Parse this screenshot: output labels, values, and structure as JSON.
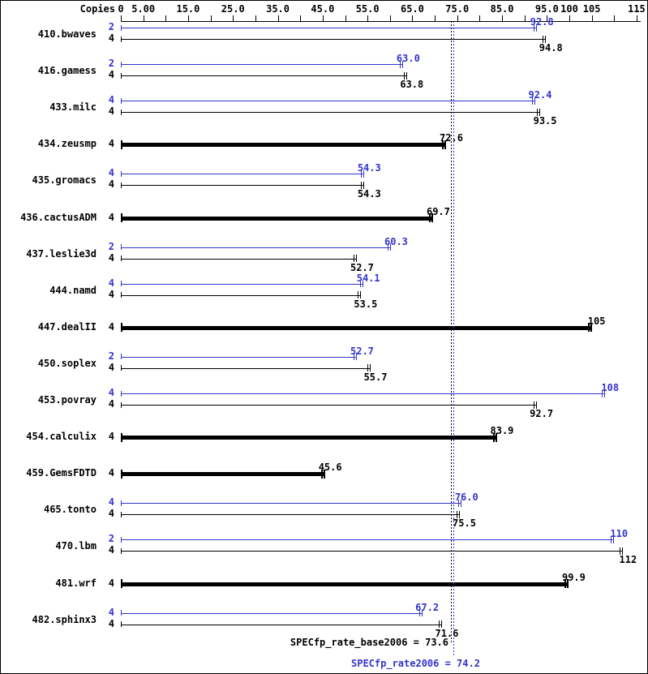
{
  "chart_data": {
    "type": "bar",
    "orientation": "horizontal",
    "copies_header": "Copies",
    "xlabel": "",
    "ylabel": "",
    "xlim": [
      0,
      116
    ],
    "tick_interval": 5,
    "grid": false,
    "axis_labels": [
      {
        "v": 0,
        "t": "0"
      },
      {
        "v": 5,
        "t": "5.00"
      },
      {
        "v": 15,
        "t": "15.0"
      },
      {
        "v": 25,
        "t": "25.0"
      },
      {
        "v": 35,
        "t": "35.0"
      },
      {
        "v": 45,
        "t": "45.0"
      },
      {
        "v": 55,
        "t": "55.0"
      },
      {
        "v": 65,
        "t": "65.0"
      },
      {
        "v": 75,
        "t": "75.0"
      },
      {
        "v": 85,
        "t": "85.0"
      },
      {
        "v": 95,
        "t": "95.0"
      },
      {
        "v": 100,
        "t": "100"
      },
      {
        "v": 105,
        "t": "105"
      },
      {
        "v": 115,
        "t": "115"
      }
    ],
    "benchmarks": [
      {
        "name": "410.bwaves",
        "bars": [
          {
            "series": "peak",
            "copies": "2",
            "value": 92.8,
            "label": "92.8"
          },
          {
            "series": "base",
            "copies": "4",
            "value": 94.8,
            "label": "94.8"
          }
        ]
      },
      {
        "name": "416.gamess",
        "bars": [
          {
            "series": "peak",
            "copies": "2",
            "value": 63.0,
            "label": "63.0"
          },
          {
            "series": "base",
            "copies": "4",
            "value": 63.8,
            "label": "63.8"
          }
        ]
      },
      {
        "name": "433.milc",
        "bars": [
          {
            "series": "peak",
            "copies": "4",
            "value": 92.4,
            "label": "92.4"
          },
          {
            "series": "base",
            "copies": "4",
            "value": 93.5,
            "label": "93.5"
          }
        ]
      },
      {
        "name": "434.zeusmp",
        "bars": [
          {
            "series": "base",
            "copies": "4",
            "value": 72.6,
            "label": "72.6"
          }
        ]
      },
      {
        "name": "435.gromacs",
        "bars": [
          {
            "series": "peak",
            "copies": "4",
            "value": 54.3,
            "label": "54.3"
          },
          {
            "series": "base",
            "copies": "4",
            "value": 54.3,
            "label": "54.3"
          }
        ]
      },
      {
        "name": "436.cactusADM",
        "bars": [
          {
            "series": "base",
            "copies": "4",
            "value": 69.7,
            "label": "69.7"
          }
        ]
      },
      {
        "name": "437.leslie3d",
        "bars": [
          {
            "series": "peak",
            "copies": "2",
            "value": 60.3,
            "label": "60.3"
          },
          {
            "series": "base",
            "copies": "4",
            "value": 52.7,
            "label": "52.7"
          }
        ]
      },
      {
        "name": "444.namd",
        "bars": [
          {
            "series": "peak",
            "copies": "4",
            "value": 54.1,
            "label": "54.1"
          },
          {
            "series": "base",
            "copies": "4",
            "value": 53.5,
            "label": "53.5"
          }
        ]
      },
      {
        "name": "447.dealII",
        "bars": [
          {
            "series": "base",
            "copies": "4",
            "value": 105,
            "label": "105"
          }
        ]
      },
      {
        "name": "450.soplex",
        "bars": [
          {
            "series": "peak",
            "copies": "2",
            "value": 52.7,
            "label": "52.7"
          },
          {
            "series": "base",
            "copies": "4",
            "value": 55.7,
            "label": "55.7"
          }
        ]
      },
      {
        "name": "453.povray",
        "bars": [
          {
            "series": "peak",
            "copies": "4",
            "value": 108,
            "label": "108"
          },
          {
            "series": "base",
            "copies": "4",
            "value": 92.7,
            "label": "92.7"
          }
        ]
      },
      {
        "name": "454.calculix",
        "bars": [
          {
            "series": "base",
            "copies": "4",
            "value": 83.9,
            "label": "83.9"
          }
        ]
      },
      {
        "name": "459.GemsFDTD",
        "bars": [
          {
            "series": "base",
            "copies": "4",
            "value": 45.6,
            "label": "45.6"
          }
        ]
      },
      {
        "name": "465.tonto",
        "bars": [
          {
            "series": "peak",
            "copies": "4",
            "value": 76.0,
            "label": "76.0"
          },
          {
            "series": "base",
            "copies": "4",
            "value": 75.5,
            "label": "75.5"
          }
        ]
      },
      {
        "name": "470.lbm",
        "bars": [
          {
            "series": "peak",
            "copies": "2",
            "value": 110,
            "label": "110"
          },
          {
            "series": "base",
            "copies": "4",
            "value": 112,
            "label": "112"
          }
        ]
      },
      {
        "name": "481.wrf",
        "bars": [
          {
            "series": "base",
            "copies": "4",
            "value": 99.9,
            "label": "99.9"
          }
        ]
      },
      {
        "name": "482.sphinx3",
        "bars": [
          {
            "series": "peak",
            "copies": "4",
            "value": 67.2,
            "label": "67.2"
          },
          {
            "series": "base",
            "copies": "4",
            "value": 71.6,
            "label": "71.6"
          }
        ]
      }
    ],
    "reference_lines": [
      {
        "series": "base",
        "value": 73.6
      },
      {
        "series": "peak",
        "value": 74.2
      }
    ],
    "footers": {
      "base": "SPECfp_rate_base2006 = 73.6",
      "peak": "SPECfp_rate2006 = 74.2"
    },
    "colors": {
      "peak": "#3333cc",
      "base": "#000000"
    }
  }
}
